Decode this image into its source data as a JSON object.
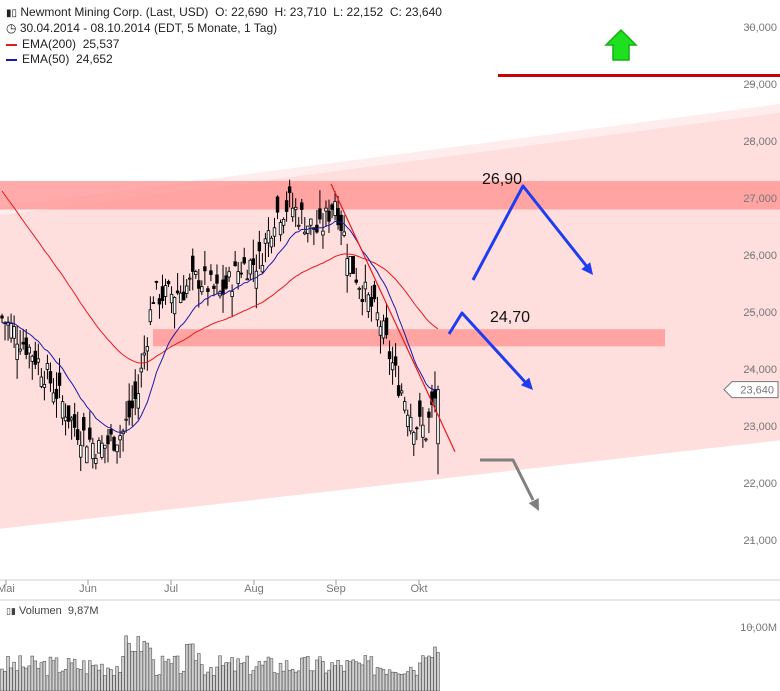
{
  "header": {
    "title": "Newmont Mining Corp. (Last, USD)",
    "ohlc": "O: 22,690  H: 23,710  L: 22,152  C: 23,640",
    "period": "30.04.2014 - 08.10.2014 (EDT, 5 Monate, 1 Tag)",
    "ema200_label": "EMA(200)",
    "ema200_value": "25,537",
    "ema50_label": "EMA(50)",
    "ema50_value": "24,652"
  },
  "colors": {
    "ema200": "#e8191a",
    "ema50": "#1a1aa6",
    "candle": "#000000",
    "zone": "#ff8f8f",
    "channel": "#ffdede",
    "arrow_blue": "#1f3df0",
    "arrow_gray": "#808080",
    "arrow_green": "#1fe01f",
    "level_red": "#cc0000"
  },
  "volume": {
    "label": "Volumen",
    "value": "9,87M",
    "tick": "10,00M"
  },
  "chart_data": {
    "type": "candlestick",
    "x_ticks": [
      "Mai",
      "Jun",
      "Jul",
      "Aug",
      "Sep",
      "Okt"
    ],
    "y_ticks": [
      "21,000",
      "22,000",
      "23,000",
      "24,000",
      "25,000",
      "26,000",
      "27,000",
      "28,000",
      "29,000",
      "30,000"
    ],
    "ylim": [
      20.3,
      30.3
    ],
    "last_price": "23,640",
    "levels": [
      {
        "label": "26,90",
        "value": 26.9
      },
      {
        "label": "24,70",
        "value": 24.7
      }
    ],
    "resistance_level": 29.15,
    "zones": [
      {
        "from": 26.8,
        "to": 27.3
      },
      {
        "from": 24.4,
        "to": 24.7
      }
    ],
    "series": [
      {
        "name": "EMA(200)",
        "last": 25.537
      },
      {
        "name": "EMA(50)",
        "last": 24.652
      }
    ],
    "ohlc_last": {
      "open": 22.69,
      "high": 23.71,
      "low": 22.152,
      "close": 23.64
    }
  }
}
